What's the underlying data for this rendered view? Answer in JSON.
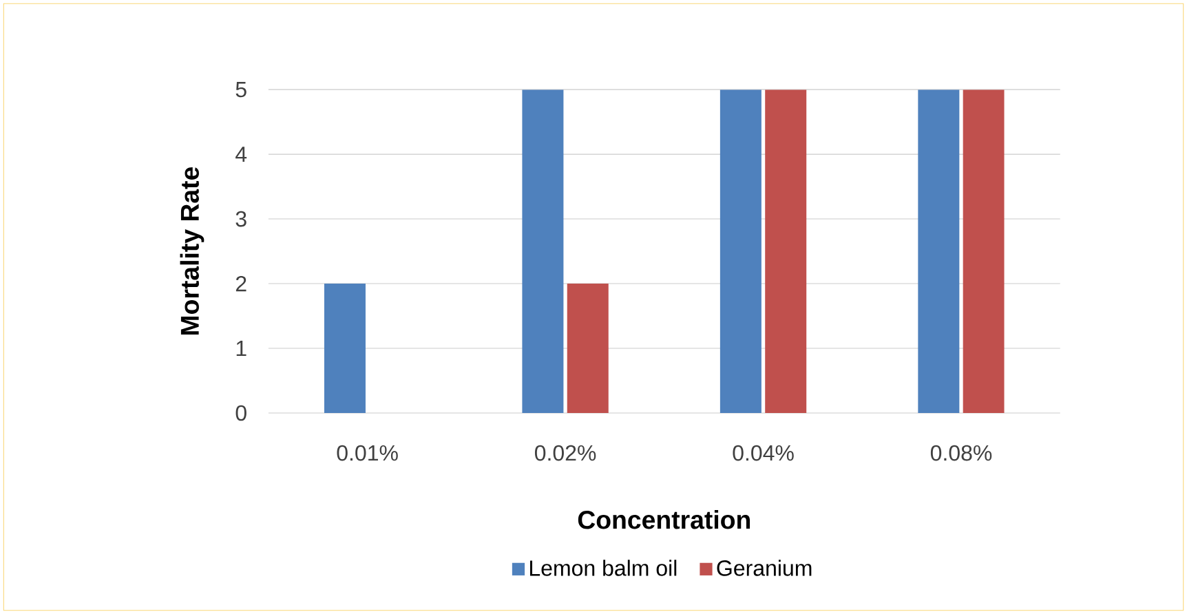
{
  "chart_data": {
    "type": "bar",
    "xlabel": "Concentration",
    "ylabel": "Mortality Rate",
    "categories": [
      "0.01%",
      "0.02%",
      "0.04%",
      "0.08%"
    ],
    "series": [
      {
        "name": "Lemon balm oil",
        "color": "#4f81bd",
        "values": [
          2,
          5,
          5,
          5
        ]
      },
      {
        "name": "Geranium",
        "color": "#c0504d",
        "values": [
          0,
          2,
          5,
          5
        ]
      }
    ],
    "ylim": [
      0,
      5
    ],
    "yticks": [
      0,
      1,
      2,
      3,
      4,
      5
    ],
    "grid": "y",
    "legend": "bottom"
  }
}
